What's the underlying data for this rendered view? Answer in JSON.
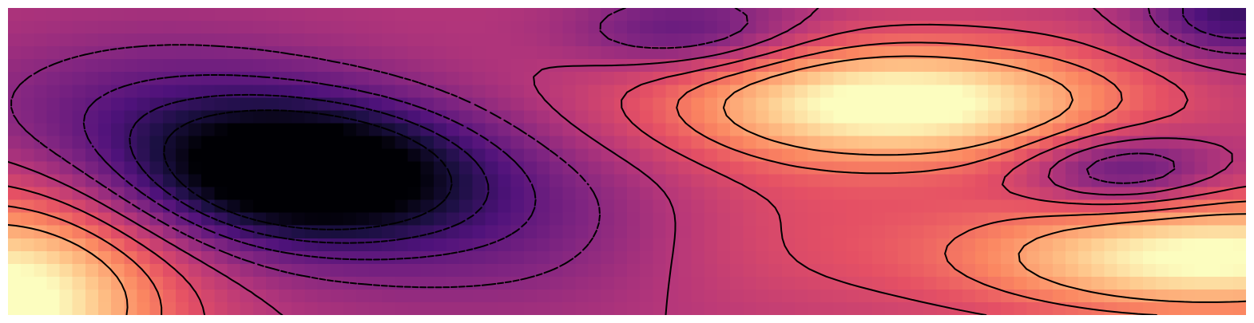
{
  "chart_data": {
    "type": "heatmap",
    "title": "",
    "xlabel": "",
    "ylabel": "",
    "colormap": "magma",
    "axes_visible": false,
    "grid": false,
    "colorbar": false,
    "value_range": [
      -1,
      1
    ],
    "resolution": {
      "cols": 96,
      "rows": 24
    },
    "surface_components": [
      {
        "x": 0.24,
        "y": 0.54,
        "amplitude": -1.25,
        "sx": 0.095,
        "sy": 0.16
      },
      {
        "x": 0.12,
        "y": 0.34,
        "amplitude": -0.38,
        "sx": 0.11,
        "sy": 0.18
      },
      {
        "x": 0.4,
        "y": 0.7,
        "amplitude": -0.3,
        "sx": 0.12,
        "sy": 0.2
      },
      {
        "x": 0.55,
        "y": 0.08,
        "amplitude": -0.45,
        "sx": 0.065,
        "sy": 0.09
      },
      {
        "x": 0.9,
        "y": 0.53,
        "amplitude": -0.55,
        "sx": 0.055,
        "sy": 0.09
      },
      {
        "x": 0.99,
        "y": 0.02,
        "amplitude": -0.6,
        "sx": 0.05,
        "sy": 0.1
      },
      {
        "x": 0.72,
        "y": 0.31,
        "amplitude": 1.1,
        "sx": 0.13,
        "sy": 0.14
      },
      {
        "x": 0.97,
        "y": 0.81,
        "amplitude": 1.05,
        "sx": 0.14,
        "sy": 0.14
      },
      {
        "x": 0.0,
        "y": 0.95,
        "amplitude": 1.1,
        "sx": 0.09,
        "sy": 0.24
      },
      {
        "x": 0.62,
        "y": 0.72,
        "amplitude": 0.2,
        "sx": 0.1,
        "sy": 0.2
      }
    ],
    "contour_levels": [
      {
        "value": -0.8,
        "style": "dashed"
      },
      {
        "value": -0.6,
        "style": "dashed"
      },
      {
        "value": -0.4,
        "style": "dashed"
      },
      {
        "value": -0.2,
        "style": "dashed"
      },
      {
        "value": 0.0,
        "style": "solid"
      },
      {
        "value": 0.2,
        "style": "solid"
      },
      {
        "value": 0.4,
        "style": "solid"
      },
      {
        "value": 0.6,
        "style": "solid"
      }
    ]
  }
}
